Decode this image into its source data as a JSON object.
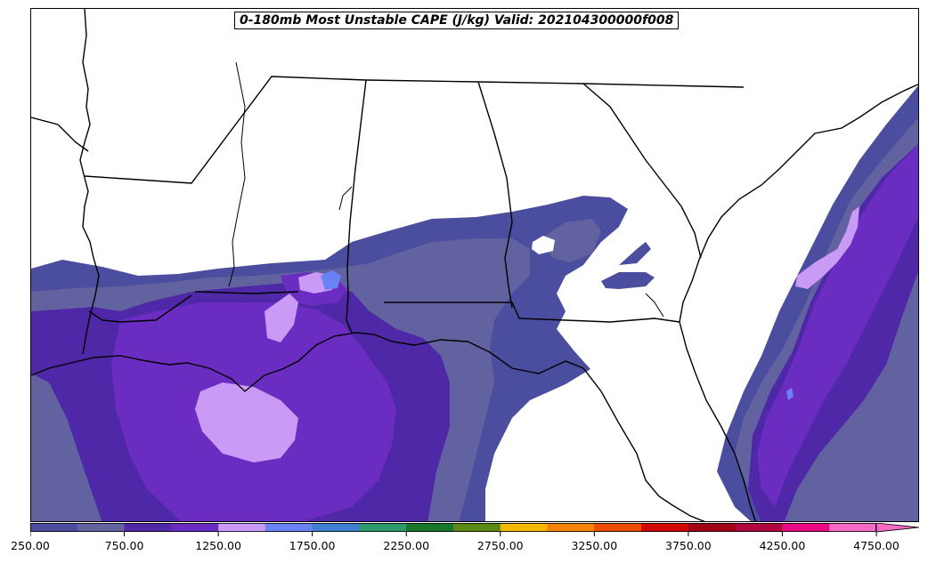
{
  "title": "0-180mb Most Unstable CAPE (J/kg) Valid: 202104300000f008",
  "colorbar": {
    "colors": [
      "#4b4d9e",
      "#6362a0",
      "#4e28a6",
      "#6b2cc2",
      "#c99af6",
      "#6b82f5",
      "#3d80d3",
      "#2e9a6e",
      "#167828",
      "#5a8a14",
      "#f4b800",
      "#f58200",
      "#ee4b00",
      "#d20800",
      "#a00014",
      "#b0083e",
      "#ea0a85",
      "#f46ac4"
    ],
    "tick_labels": [
      "250.00",
      "750.00",
      "1250.00",
      "1750.00",
      "2250.00",
      "2750.00",
      "3250.00",
      "3750.00",
      "4250.00",
      "4750.00"
    ],
    "extend": "max"
  }
}
